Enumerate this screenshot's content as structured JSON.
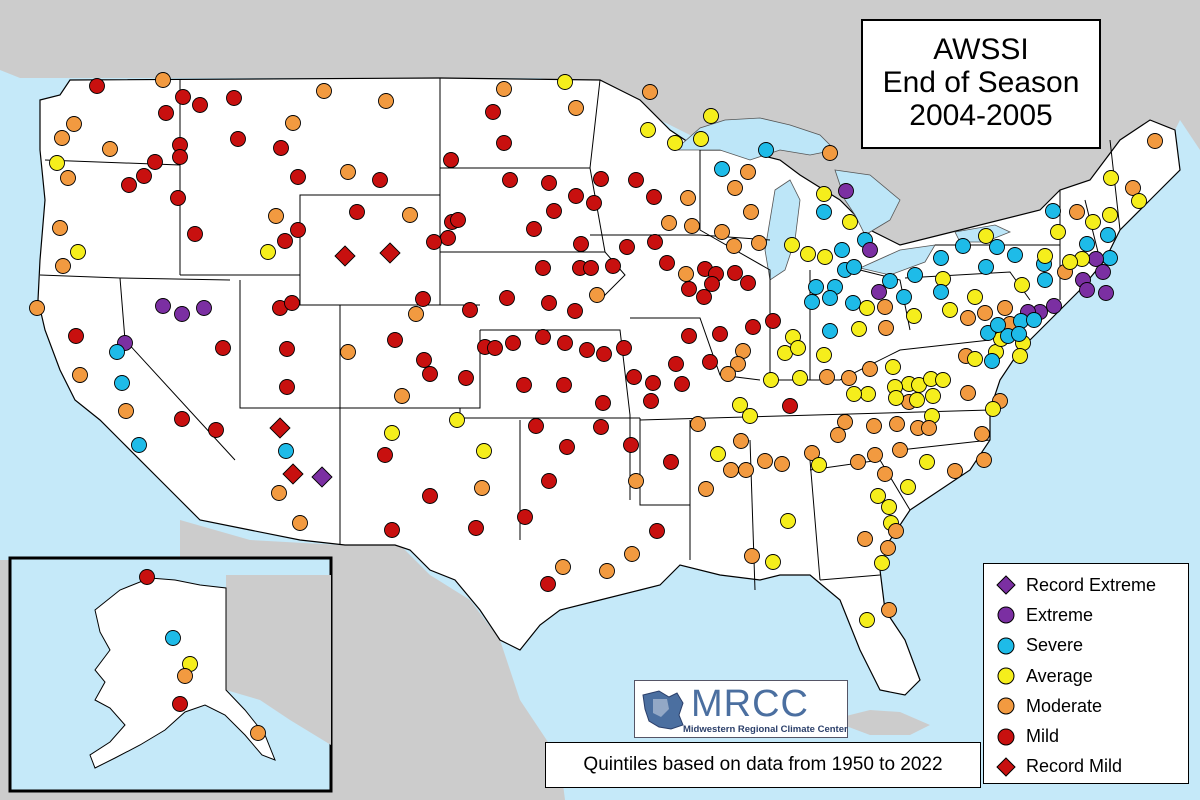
{
  "title": {
    "line1": "AWSSI",
    "line2": "End of Season",
    "line3": "2004-2005"
  },
  "note": "Quintiles based on data from 1950 to 2022",
  "logo": {
    "name": "MRCC",
    "subtitle": "Midwestern Regional Climate Center"
  },
  "legend": [
    {
      "label": "Record Extreme",
      "color": "#7b2fa2",
      "shape": "diamond"
    },
    {
      "label": "Extreme",
      "color": "#7b2fa2",
      "shape": "circle"
    },
    {
      "label": "Severe",
      "color": "#1ebbe8",
      "shape": "circle"
    },
    {
      "label": "Average",
      "color": "#f5ee1c",
      "shape": "circle"
    },
    {
      "label": "Moderate",
      "color": "#f29a40",
      "shape": "circle"
    },
    {
      "label": "Mild",
      "color": "#c8100f",
      "shape": "circle"
    },
    {
      "label": "Record Mild",
      "color": "#c8100f",
      "shape": "diamond"
    }
  ],
  "colors": {
    "ocean": "#c5e9f9",
    "land_foreign": "#cccccc",
    "land_us": "#ffffff",
    "great_lakes": "#bde6f8",
    "state_border": "#000000"
  }
}
